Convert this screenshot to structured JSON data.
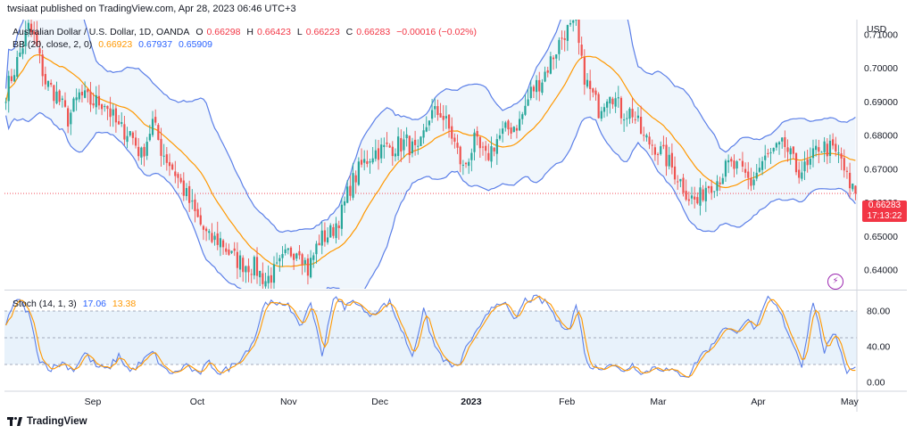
{
  "publish_text": "twsiaat published on TradingView.com, Apr 28, 2023 06:46 UTC+3",
  "legend": {
    "symbol": "Australian Dollar / U.S. Dollar, 1D, OANDA",
    "o_label": "O",
    "o": "0.66298",
    "h_label": "H",
    "h": "0.66423",
    "l_label": "L",
    "l": "0.66223",
    "c_label": "C",
    "c": "0.66283",
    "change": "−0.00016 (−0.02%)",
    "bb_label": "BB (20, close, 2, 0)",
    "bb_basis": "0.66923",
    "bb_upper": "0.67937",
    "bb_lower": "0.65909",
    "stoch_label": "Stoch (14, 1, 3)",
    "stoch_k": "17.06",
    "stoch_d": "13.38"
  },
  "price_tag": {
    "price": "0.66283",
    "countdown": "17:13:22"
  },
  "footer_brand": "TradingView",
  "colors": {
    "up": "#26a69a",
    "down": "#ef5350",
    "bb_band": "#5b7fe8",
    "bb_basis": "#ff9800",
    "stoch_k": "#5b7fe8",
    "stoch_d": "#ff9800",
    "band_fill": "#f0f6fc",
    "stoch_fill": "#e8f2fb"
  },
  "chart_data": {
    "type": "candlestick",
    "title": "Australian Dollar / U.S. Dollar, 1D, OANDA",
    "currency_label": "USD",
    "ylim": [
      0.6345,
      0.7145
    ],
    "y_ticks": [
      "0.71000",
      "0.70000",
      "0.69000",
      "0.68000",
      "0.67000",
      "0.66000",
      "0.65000",
      "0.64000"
    ],
    "x_ticks": [
      "Sep",
      "Oct",
      "Nov",
      "Dec",
      "2023",
      "Feb",
      "Mar",
      "Apr",
      "May"
    ],
    "last_price": 0.66283,
    "close_anchors": [
      [
        0,
        0.693
      ],
      [
        4,
        0.702
      ],
      [
        8,
        0.712
      ],
      [
        10,
        0.709
      ],
      [
        14,
        0.696
      ],
      [
        18,
        0.692
      ],
      [
        22,
        0.685
      ],
      [
        26,
        0.692
      ],
      [
        30,
        0.69
      ],
      [
        35,
        0.69
      ],
      [
        40,
        0.682
      ],
      [
        44,
        0.681
      ],
      [
        48,
        0.674
      ],
      [
        52,
        0.684
      ],
      [
        55,
        0.676
      ],
      [
        60,
        0.669
      ],
      [
        64,
        0.662
      ],
      [
        68,
        0.655
      ],
      [
        72,
        0.649
      ],
      [
        76,
        0.649
      ],
      [
        80,
        0.644
      ],
      [
        84,
        0.642
      ],
      [
        88,
        0.641
      ],
      [
        92,
        0.637
      ],
      [
        96,
        0.64
      ],
      [
        100,
        0.645
      ],
      [
        104,
        0.647
      ],
      [
        107,
        0.64
      ],
      [
        111,
        0.649
      ],
      [
        115,
        0.651
      ],
      [
        119,
        0.657
      ],
      [
        122,
        0.665
      ],
      [
        126,
        0.671
      ],
      [
        130,
        0.675
      ],
      [
        134,
        0.676
      ],
      [
        138,
        0.677
      ],
      [
        142,
        0.678
      ],
      [
        146,
        0.674
      ],
      [
        150,
        0.686
      ],
      [
        154,
        0.687
      ],
      [
        158,
        0.68
      ],
      [
        162,
        0.67
      ],
      [
        166,
        0.678
      ],
      [
        170,
        0.673
      ],
      [
        174,
        0.679
      ],
      [
        178,
        0.682
      ],
      [
        182,
        0.684
      ],
      [
        186,
        0.693
      ],
      [
        190,
        0.697
      ],
      [
        194,
        0.704
      ],
      [
        198,
        0.711
      ],
      [
        202,
        0.712
      ],
      [
        204,
        0.701
      ],
      [
        206,
        0.695
      ],
      [
        210,
        0.688
      ],
      [
        214,
        0.694
      ],
      [
        218,
        0.687
      ],
      [
        222,
        0.687
      ],
      [
        226,
        0.679
      ],
      [
        230,
        0.677
      ],
      [
        234,
        0.673
      ],
      [
        238,
        0.668
      ],
      [
        242,
        0.662
      ],
      [
        245,
        0.66
      ],
      [
        248,
        0.665
      ],
      [
        252,
        0.667
      ],
      [
        256,
        0.671
      ],
      [
        260,
        0.67
      ],
      [
        264,
        0.666
      ],
      [
        268,
        0.672
      ],
      [
        272,
        0.675
      ],
      [
        276,
        0.677
      ],
      [
        280,
        0.67
      ],
      [
        284,
        0.67
      ],
      [
        288,
        0.677
      ],
      [
        292,
        0.676
      ],
      [
        296,
        0.673
      ],
      [
        299,
        0.664
      ],
      [
        301,
        0.663
      ]
    ],
    "stoch": {
      "ylim": [
        -8,
        102
      ],
      "y_ticks": [
        "80.00",
        "40.00",
        "0.00"
      ],
      "bands": [
        20,
        50,
        80
      ],
      "k_anchors": [
        [
          0,
          65
        ],
        [
          4,
          95
        ],
        [
          8,
          78
        ],
        [
          12,
          25
        ],
        [
          16,
          15
        ],
        [
          20,
          22
        ],
        [
          24,
          14
        ],
        [
          28,
          33
        ],
        [
          32,
          18
        ],
        [
          36,
          14
        ],
        [
          40,
          30
        ],
        [
          44,
          12
        ],
        [
          48,
          22
        ],
        [
          52,
          34
        ],
        [
          56,
          14
        ],
        [
          60,
          10
        ],
        [
          64,
          20
        ],
        [
          68,
          8
        ],
        [
          72,
          22
        ],
        [
          76,
          10
        ],
        [
          80,
          18
        ],
        [
          84,
          30
        ],
        [
          88,
          48
        ],
        [
          92,
          92
        ],
        [
          96,
          85
        ],
        [
          100,
          90
        ],
        [
          104,
          60
        ],
        [
          108,
          90
        ],
        [
          112,
          30
        ],
        [
          116,
          95
        ],
        [
          120,
          85
        ],
        [
          124,
          92
        ],
        [
          128,
          75
        ],
        [
          132,
          82
        ],
        [
          136,
          90
        ],
        [
          140,
          60
        ],
        [
          144,
          30
        ],
        [
          148,
          80
        ],
        [
          152,
          40
        ],
        [
          156,
          22
        ],
        [
          160,
          16
        ],
        [
          164,
          45
        ],
        [
          168,
          60
        ],
        [
          172,
          85
        ],
        [
          176,
          92
        ],
        [
          180,
          68
        ],
        [
          184,
          92
        ],
        [
          188,
          94
        ],
        [
          192,
          88
        ],
        [
          196,
          65
        ],
        [
          200,
          62
        ],
        [
          202,
          88
        ],
        [
          206,
          20
        ],
        [
          210,
          15
        ],
        [
          214,
          22
        ],
        [
          218,
          12
        ],
        [
          222,
          20
        ],
        [
          226,
          10
        ],
        [
          230,
          18
        ],
        [
          234,
          14
        ],
        [
          238,
          10
        ],
        [
          242,
          8
        ],
        [
          246,
          30
        ],
        [
          250,
          40
        ],
        [
          254,
          62
        ],
        [
          258,
          55
        ],
        [
          262,
          70
        ],
        [
          266,
          60
        ],
        [
          270,
          95
        ],
        [
          274,
          80
        ],
        [
          278,
          50
        ],
        [
          282,
          20
        ],
        [
          286,
          92
        ],
        [
          290,
          35
        ],
        [
          294,
          55
        ],
        [
          298,
          12
        ],
        [
          301,
          17
        ]
      ],
      "d_last": 13.38,
      "k_last": 17.06
    }
  }
}
